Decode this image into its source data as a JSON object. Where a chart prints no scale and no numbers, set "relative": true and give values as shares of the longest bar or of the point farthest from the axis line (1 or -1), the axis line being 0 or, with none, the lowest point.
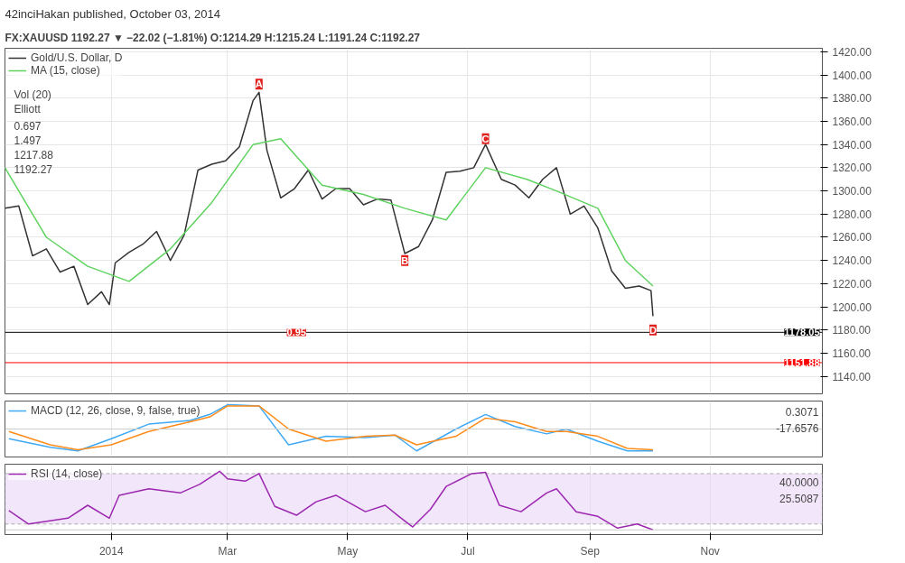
{
  "chart_data": [
    {
      "type": "line",
      "title": "42inciHakan published, October 03, 2014",
      "subtitle": "FX:XAUUSD 1192.27 ▼ −22.02 (−1.81%) O:1214.29 H:1215.24 L:1191.24 C:1192.27",
      "xlim": [
        "2013-11-08",
        "2014-12-28"
      ],
      "ylim": [
        1125,
        1423
      ],
      "yticks": [
        {
          "value": 1140,
          "label": "1140.00"
        },
        {
          "value": 1160,
          "label": "1160.00"
        },
        {
          "value": 1180,
          "label": "1180.00"
        },
        {
          "value": 1200,
          "label": "1200.00"
        },
        {
          "value": 1220,
          "label": "1220.00"
        },
        {
          "value": 1240,
          "label": "1240.00"
        },
        {
          "value": 1260,
          "label": "1260.00"
        },
        {
          "value": 1280,
          "label": "1280.00"
        },
        {
          "value": 1300,
          "label": "1300.00"
        },
        {
          "value": 1320,
          "label": "1320.00"
        },
        {
          "value": 1340,
          "label": "1340.00"
        },
        {
          "value": 1360,
          "label": "1360.00"
        },
        {
          "value": 1380,
          "label": "1380.00"
        },
        {
          "value": 1400,
          "label": "1400.00"
        },
        {
          "value": 1420,
          "label": "1420.00"
        }
      ],
      "tick_labels": "y",
      "grid": true,
      "legend": "top left",
      "series": [
        {
          "name": "Gold/U.S. Dollar, D",
          "color": "#333333",
          "x": [
            "2013-11-08",
            "2013-11-15",
            "2013-11-22",
            "2013-11-29",
            "2013-12-06",
            "2013-12-13",
            "2013-12-20",
            "2013-12-27",
            "2013-12-31",
            "2014-01-03",
            "2014-01-10",
            "2014-01-17",
            "2014-01-24",
            "2014-01-31",
            "2014-02-07",
            "2014-02-14",
            "2014-02-21",
            "2014-02-28",
            "2014-03-07",
            "2014-03-14",
            "2014-03-17",
            "2014-03-21",
            "2014-03-28",
            "2014-04-04",
            "2014-04-11",
            "2014-04-18",
            "2014-04-25",
            "2014-05-02",
            "2014-05-09",
            "2014-05-16",
            "2014-05-23",
            "2014-05-30",
            "2014-06-06",
            "2014-06-13",
            "2014-06-20",
            "2014-06-27",
            "2014-07-04",
            "2014-07-10",
            "2014-07-18",
            "2014-07-25",
            "2014-08-01",
            "2014-08-08",
            "2014-08-15",
            "2014-08-22",
            "2014-08-29",
            "2014-09-05",
            "2014-09-12",
            "2014-09-19",
            "2014-09-26",
            "2014-10-02",
            "2014-10-03"
          ],
          "values": [
            1285,
            1287,
            1244,
            1250,
            1230,
            1235,
            1202,
            1213,
            1202,
            1238,
            1247,
            1254,
            1265,
            1240,
            1262,
            1318,
            1323,
            1326,
            1338,
            1378,
            1385,
            1335,
            1294,
            1302,
            1318,
            1293,
            1302,
            1302,
            1288,
            1293,
            1292,
            1246,
            1252,
            1275,
            1316,
            1317,
            1320,
            1340,
            1310,
            1305,
            1294,
            1310,
            1320,
            1280,
            1287,
            1268,
            1231,
            1216,
            1218,
            1214,
            1192
          ]
        },
        {
          "name": "MA (15, close)",
          "color": "#5fd35f",
          "x": [
            "2013-11-08",
            "2013-11-29",
            "2013-12-20",
            "2014-01-10",
            "2014-01-31",
            "2014-02-21",
            "2014-03-14",
            "2014-03-28",
            "2014-04-18",
            "2014-05-09",
            "2014-05-30",
            "2014-06-20",
            "2014-07-10",
            "2014-07-31",
            "2014-08-15",
            "2014-09-05",
            "2014-09-19",
            "2014-10-03"
          ],
          "values": [
            1320,
            1260,
            1235,
            1222,
            1250,
            1290,
            1340,
            1345,
            1305,
            1297,
            1285,
            1275,
            1320,
            1310,
            1300,
            1285,
            1240,
            1218
          ]
        }
      ],
      "ref_lines": [
        {
          "axis": "y",
          "value": 1151.88,
          "label": "1151.88",
          "color": "#ff0000"
        },
        {
          "axis": "y",
          "value": 1178.05,
          "label": "1178.05",
          "color": "#000000"
        }
      ],
      "annotations": [
        "Vol (20)",
        "Elliott",
        {
          "text": "A",
          "x": "2014-03-17",
          "y": 1392
        },
        {
          "text": "B",
          "x": "2014-05-30",
          "y": 1240
        },
        {
          "text": "C",
          "x": "2014-07-10",
          "y": 1345
        },
        {
          "text": "D",
          "x": "2014-10-03",
          "y": 1180
        },
        "0.697",
        "1.497",
        {
          "text": "0.95",
          "x": "2014-04-05",
          "y": 1178
        },
        "1217.88",
        "1192.27"
      ]
    },
    {
      "type": "line",
      "relative": true,
      "xlim": [
        "2013-11-08",
        "2014-12-28"
      ],
      "tick_labels": false,
      "grid": true,
      "legend": "top left",
      "series": [
        {
          "name": "MACD (12, 26, close, 9, false, true)",
          "color": "#3fa9f5",
          "x": [
            "2013-11-10",
            "2013-12-01",
            "2013-12-15",
            "2014-01-01",
            "2014-01-20",
            "2014-02-10",
            "2014-02-20",
            "2014-03-01",
            "2014-03-17",
            "2014-04-01",
            "2014-04-20",
            "2014-05-10",
            "2014-05-25",
            "2014-06-05",
            "2014-06-25",
            "2014-07-10",
            "2014-07-25",
            "2014-08-10",
            "2014-08-20",
            "2014-09-05",
            "2014-09-20",
            "2014-10-03"
          ],
          "values": [
            -0.4,
            -0.75,
            -0.9,
            -0.4,
            0.2,
            0.35,
            0.6,
            1,
            0.95,
            -0.65,
            -0.3,
            -0.35,
            -0.25,
            -0.9,
            0,
            0.6,
            0.1,
            -0.2,
            0,
            -0.5,
            -0.9,
            -0.9
          ]
        },
        {
          "color": "#ff8c1a",
          "x": [
            "2013-11-10",
            "2013-12-01",
            "2013-12-15",
            "2014-01-01",
            "2014-01-20",
            "2014-02-10",
            "2014-02-20",
            "2014-03-01",
            "2014-03-17",
            "2014-04-01",
            "2014-04-20",
            "2014-05-10",
            "2014-05-25",
            "2014-06-05",
            "2014-06-25",
            "2014-07-10",
            "2014-07-25",
            "2014-08-10",
            "2014-08-20",
            "2014-09-05",
            "2014-09-20",
            "2014-10-03"
          ],
          "values": [
            -0.1,
            -0.65,
            -0.85,
            -0.65,
            -0.1,
            0.3,
            0.5,
            0.95,
            0.95,
            0.0,
            -0.5,
            -0.3,
            -0.25,
            -0.65,
            -0.3,
            0.45,
            0.3,
            -0.1,
            -0.1,
            -0.3,
            -0.8,
            -0.85
          ]
        }
      ],
      "annotations": [
        "0.3071",
        "-17.6576"
      ]
    },
    {
      "type": "line",
      "relative": true,
      "xlim": [
        "2013-11-08",
        "2014-12-28"
      ],
      "xticks": [
        {
          "value": "2014-01-01",
          "label": "2014"
        },
        {
          "value": "2014-03-01",
          "label": "Mar"
        },
        {
          "value": "2014-05-01",
          "label": "May"
        },
        {
          "value": "2014-07-01",
          "label": "Jul"
        },
        {
          "value": "2014-09-01",
          "label": "Sep"
        },
        {
          "value": "2014-11-01",
          "label": "Nov"
        }
      ],
      "grid": true,
      "legend": "top left",
      "bands": [
        {
          "axis": "y",
          "from": 0.1,
          "to": 0.96,
          "color": "#e9d5f7"
        }
      ],
      "series": [
        {
          "name": "RSI (14, close)",
          "color": "#9c27b0",
          "x": [
            "2013-11-10",
            "2013-11-20",
            "2013-12-10",
            "2013-12-20",
            "2013-12-31",
            "2014-01-05",
            "2014-01-20",
            "2014-02-05",
            "2014-02-15",
            "2014-02-25",
            "2014-03-01",
            "2014-03-10",
            "2014-03-17",
            "2014-03-25",
            "2014-04-05",
            "2014-04-15",
            "2014-04-25",
            "2014-05-10",
            "2014-05-20",
            "2014-05-27",
            "2014-06-03",
            "2014-06-12",
            "2014-06-20",
            "2014-07-03",
            "2014-07-10",
            "2014-07-17",
            "2014-07-28",
            "2014-08-10",
            "2014-08-15",
            "2014-08-25",
            "2014-09-05",
            "2014-09-15",
            "2014-09-25",
            "2014-10-03"
          ],
          "values": [
            0.33,
            0.1,
            0.2,
            0.42,
            0.2,
            0.59,
            0.7,
            0.63,
            0.78,
            1,
            0.87,
            0.83,
            0.96,
            0.4,
            0.25,
            0.48,
            0.59,
            0.31,
            0.42,
            0.23,
            0.05,
            0.35,
            0.74,
            0.96,
            0.98,
            0.42,
            0.31,
            0.63,
            0.7,
            0.31,
            0.23,
            0.03,
            0.1,
            0
          ]
        }
      ],
      "annotations": [
        "40.0000",
        "25.5087"
      ]
    }
  ]
}
